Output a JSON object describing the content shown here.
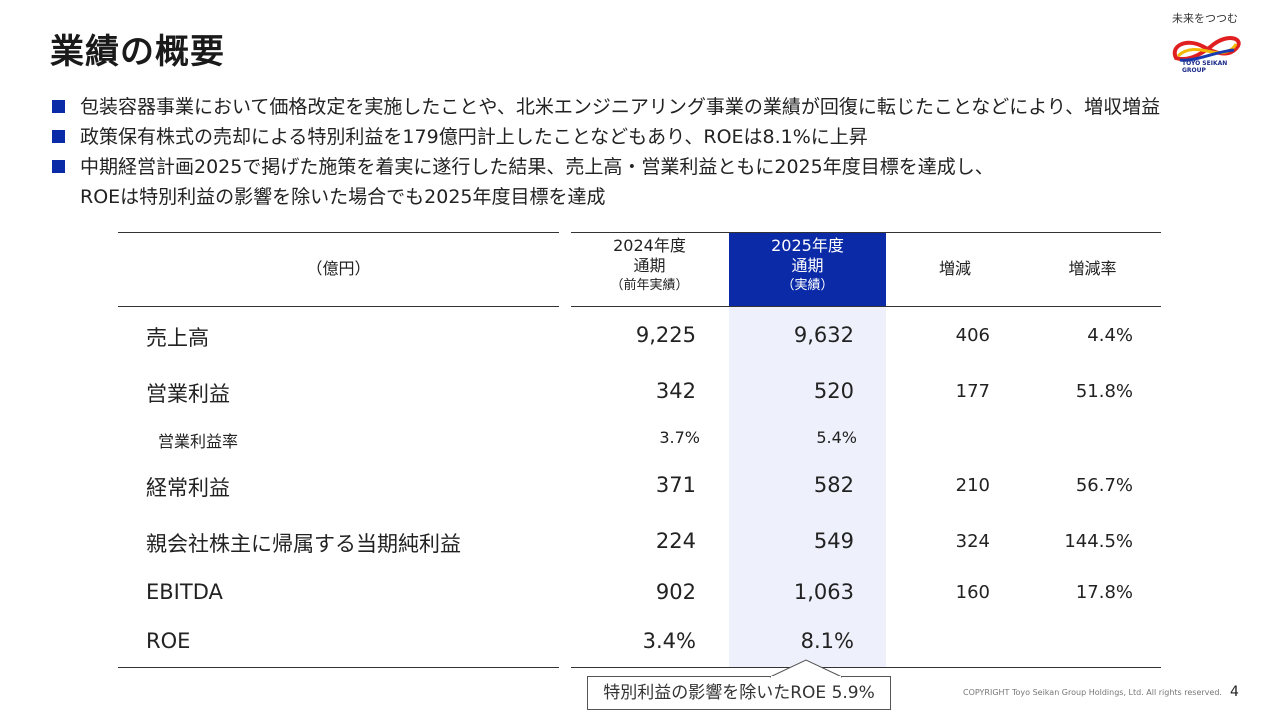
{
  "title": "業績の概要",
  "logo": {
    "tagline": "未来をつつむ",
    "brand_line1": "TOYO SEIKAN",
    "brand_line2": "GROUP"
  },
  "bullets": [
    "包装容器事業において価格改定を実施したことや、北米エンジニアリング事業の業績が回復に転じたことなどにより、増収増益",
    "政策保有株式の売却による特別利益を179億円計上したことなどもあり、ROEは8.1%に上昇",
    "中期経営計画2025で掲げた施策を着実に遂行した結果、売上高・営業利益ともに2025年度目標を達成し、",
    "ROEは特別利益の影響を除いた場合でも2025年度目標を達成"
  ],
  "table": {
    "unit_label": "（億円）",
    "col_prev": {
      "line1": "2024年度",
      "line2": "通期",
      "line3": "（前年実績）"
    },
    "col_curr": {
      "line1": "2025年度",
      "line2": "通期",
      "line3": "（実績）"
    },
    "col_diff": "増減",
    "col_rate": "増減率",
    "rows": [
      {
        "label": "売上高",
        "prev": "9,225",
        "curr": "9,632",
        "diff": "406",
        "rate": "4.4%"
      },
      {
        "label": "営業利益",
        "prev": "342",
        "curr": "520",
        "diff": "177",
        "rate": "51.8%"
      },
      {
        "label": "営業利益率",
        "prev": "3.7%",
        "curr": "5.4%",
        "diff": "",
        "rate": ""
      },
      {
        "label": "経常利益",
        "prev": "371",
        "curr": "582",
        "diff": "210",
        "rate": "56.7%"
      },
      {
        "label": "親会社株主に帰属する当期純利益",
        "prev": "224",
        "curr": "549",
        "diff": "324",
        "rate": "144.5%"
      },
      {
        "label": "EBITDA",
        "prev": "902",
        "curr": "1,063",
        "diff": "160",
        "rate": "17.8%"
      },
      {
        "label": "ROE",
        "prev": "3.4%",
        "curr": "8.1%",
        "diff": "",
        "rate": ""
      }
    ]
  },
  "callout": "特別利益の影響を除いたROE 5.9%",
  "copyright": "COPYRIGHT Toyo Seikan Group Holdings, Ltd. All rights reserved.",
  "page_number": "4",
  "colors": {
    "accent": "#0b2aa8",
    "highlight": "#eef1fb"
  }
}
